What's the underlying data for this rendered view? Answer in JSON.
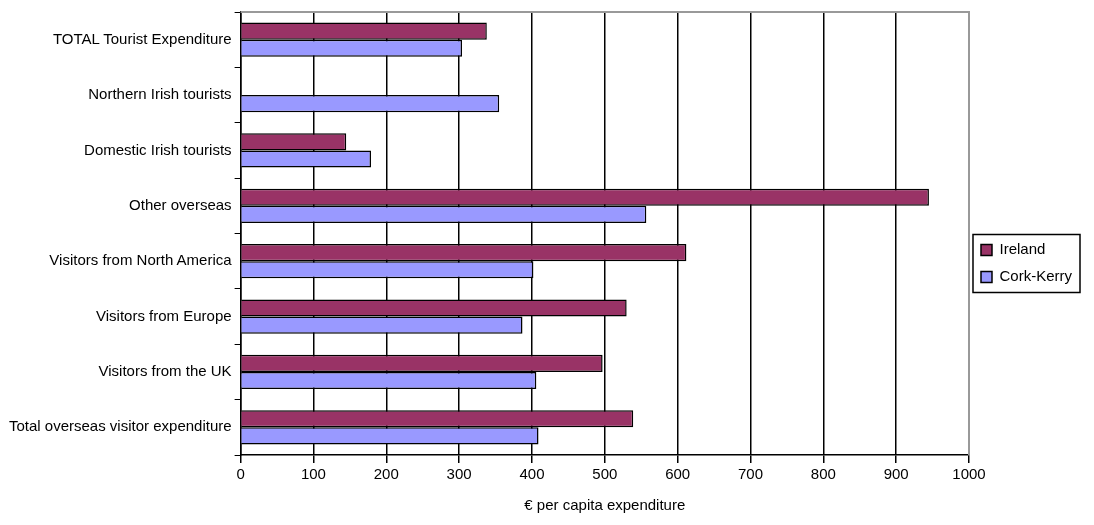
{
  "chart_data": {
    "type": "bar",
    "orientation": "horizontal",
    "xlabel": "€ per capita expenditure",
    "categories": [
      "TOTAL Tourist Expenditure",
      "Northern Irish tourists",
      "Domestic Irish tourists",
      "Other overseas",
      "Visitors from North America",
      "Visitors from Europe",
      "Visitors from the UK",
      "Total overseas visitor expenditure"
    ],
    "series": [
      {
        "name": "Ireland",
        "color": "#993366",
        "values": [
          338,
          null,
          145,
          945,
          612,
          530,
          497,
          539
        ]
      },
      {
        "name": "Cork-Kerry",
        "color": "#9999ff",
        "values": [
          304,
          355,
          179,
          557,
          402,
          387,
          406,
          409
        ]
      }
    ],
    "xlim": [
      0,
      1000
    ],
    "xticks": [
      0,
      100,
      200,
      300,
      400,
      500,
      600,
      700,
      800,
      900,
      1000
    ],
    "grid": "x",
    "legend": "right"
  }
}
